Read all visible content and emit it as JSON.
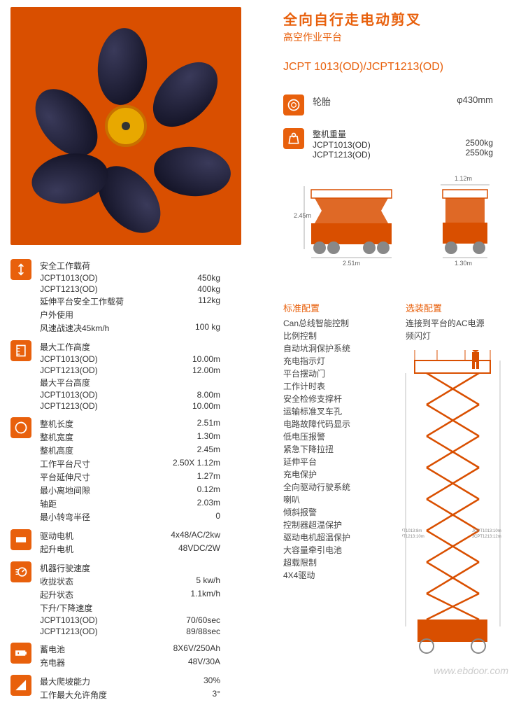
{
  "title_main": "全向自行走电动剪叉",
  "title_sub": "高空作业平台",
  "model": "JCPT 1013(OD)/JCPT1213(OD)",
  "top_specs": {
    "tire": {
      "label": "轮胎",
      "value": "φ430mm"
    },
    "weight": {
      "label": "整机重量",
      "m1_lbl": "JCPT1013(OD)",
      "m1_val": "2500kg",
      "m2_lbl": "JCPT1213(OD)",
      "m2_val": "2550kg"
    }
  },
  "sections": [
    {
      "icon": "load",
      "rows": [
        {
          "lbl": "安全工作载荷",
          "val": ""
        },
        {
          "lbl": "JCPT1013(OD)",
          "val": "450kg"
        },
        {
          "lbl": "JCPT1213(OD)",
          "val": "400kg"
        },
        {
          "lbl": "延伸平台安全工作载荷",
          "val": "112kg"
        },
        {
          "lbl": "户外使用",
          "val": ""
        },
        {
          "lbl": "风速战速决45km/h",
          "val": "100 kg"
        }
      ]
    },
    {
      "icon": "height",
      "rows": [
        {
          "lbl": "最大工作高度",
          "val": ""
        },
        {
          "lbl": "JCPT1013(OD)",
          "val": "10.00m"
        },
        {
          "lbl": "JCPT1213(OD)",
          "val": "12.00m"
        },
        {
          "lbl": "最大平台高度",
          "val": ""
        },
        {
          "lbl": "JCPT1013(OD)",
          "val": "8.00m"
        },
        {
          "lbl": "JCPT1213(OD)",
          "val": "10.00m"
        }
      ]
    },
    {
      "icon": "dim",
      "rows": [
        {
          "lbl": "整机长度",
          "val": "2.51m"
        },
        {
          "lbl": "整机宽度",
          "val": "1.30m"
        },
        {
          "lbl": "整机高度",
          "val": "2.45m"
        },
        {
          "lbl": "工作平台尺寸",
          "val": "2.50X 1.12m"
        },
        {
          "lbl": "平台延伸尺寸",
          "val": "1.27m"
        },
        {
          "lbl": "最小离地间隙",
          "val": "0.12m"
        },
        {
          "lbl": "轴距",
          "val": "2.03m"
        },
        {
          "lbl": "最小转弯半径",
          "val": "0"
        }
      ]
    },
    {
      "icon": "motor",
      "rows": [
        {
          "lbl": "驱动电机",
          "val": "4x48/AC/2kw"
        },
        {
          "lbl": "起升电机",
          "val": "48VDC/2W"
        }
      ]
    },
    {
      "icon": "speed",
      "rows": [
        {
          "lbl": "机器行驶速度",
          "val": ""
        },
        {
          "lbl": "收拢状态",
          "val": "5 kw/h"
        },
        {
          "lbl": "起升状态",
          "val": "1.1km/h"
        },
        {
          "lbl": "下升/下降速度",
          "val": ""
        },
        {
          "lbl": "JCPT1013(OD)",
          "val": "70/60sec"
        },
        {
          "lbl": "JCPT1213(OD)",
          "val": "89/88sec"
        }
      ]
    },
    {
      "icon": "battery",
      "rows": [
        {
          "lbl": "蓄电池",
          "val": "8X6V/250Ah"
        },
        {
          "lbl": "充电器",
          "val": "48V/30A"
        }
      ]
    },
    {
      "icon": "grade",
      "rows": [
        {
          "lbl": "最大爬坡能力",
          "val": "30%"
        },
        {
          "lbl": "工作最大允许角度",
          "val": "3°"
        }
      ]
    }
  ],
  "std_config": {
    "title": "标准配置",
    "items": [
      "Can总线智能控制",
      "比例控制",
      "自动坑洞保护系统",
      "充电指示灯",
      "平台摆动门",
      "工作计时表",
      "安全检修支撑杆",
      "运输标准叉车孔",
      "电路故障代码显示",
      "低电压报警",
      "紧急下降拉扭",
      "延伸平台",
      "充电保护",
      "全向驱动行驶系统",
      "喇叭",
      "倾斜报警",
      "控制器超温保护",
      "驱动电机超温保护",
      "大容量牵引电池",
      "超载限制",
      "4X4驱动"
    ]
  },
  "opt_config": {
    "title": "选装配置",
    "items": [
      "连接到平台的AC电源",
      "频闪灯"
    ]
  },
  "dims": {
    "side_h": "2.45m",
    "side_w": "2.51m",
    "front_w": "1.30m",
    "front_top": "1.12m"
  },
  "fig_labels": {
    "l1": "JCPT1013:8m",
    "l2": "JCPT1213:10m",
    "r1": "JCPT1013:10m",
    "r2": "JCPT1213:12m"
  },
  "watermark": "www.ebdoor.com",
  "colors": {
    "brand": "#e8600c",
    "orange": "#d94f00",
    "text": "#333"
  }
}
